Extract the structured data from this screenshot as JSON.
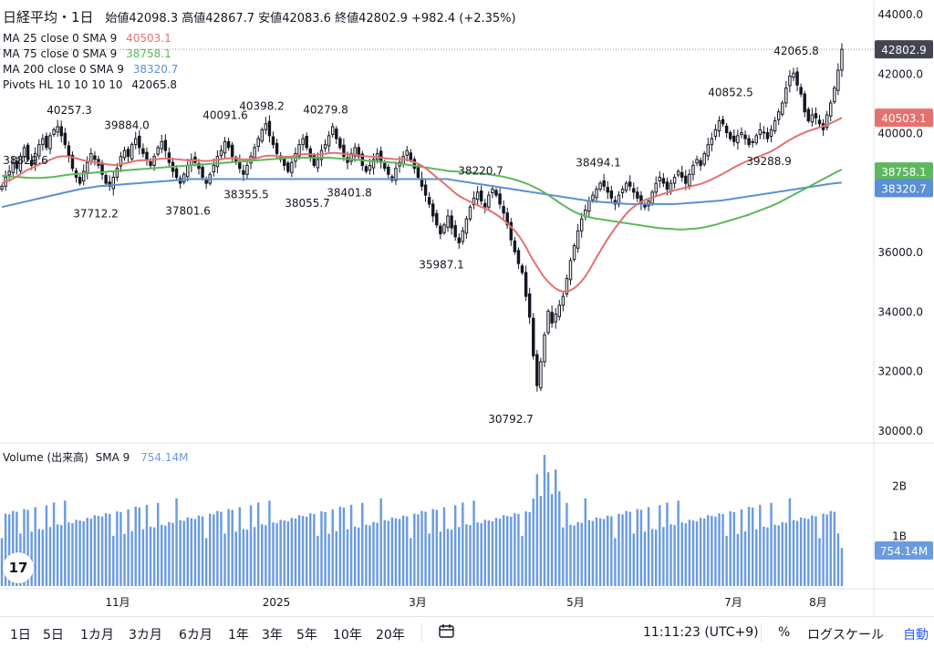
{
  "header": {
    "title": "日経平均・1日",
    "open_label": "始値",
    "open": "42098.3",
    "high_label": "高値",
    "high": "42867.7",
    "low_label": "安値",
    "low": "42083.6",
    "close_label": "終値",
    "close": "42802.9",
    "change": "+982.4 (+2.35%)"
  },
  "indicators": [
    {
      "label": "MA 25 close 0 SMA 9",
      "value": "40503.1",
      "color": "#e5716f"
    },
    {
      "label": "MA 75 close 0 SMA 9",
      "value": "38758.1",
      "color": "#5cb85c"
    },
    {
      "label": "MA 200 close 0 SMA 9",
      "value": "38320.7",
      "color": "#5b8fd6"
    },
    {
      "label": "Pivots HL 10 10 10 10",
      "value": "42065.8",
      "color": "#131722"
    }
  ],
  "volume_legend": {
    "label": "Volume (出来高)",
    "sma": "SMA 9",
    "value": "754.14M",
    "color": "#6a9be0"
  },
  "timeframes": [
    "1日",
    "5日",
    "1カ月",
    "3カ月",
    "6カ月",
    "1年",
    "3年",
    "5年",
    "10年",
    "20年"
  ],
  "footer": {
    "time": "11:11:23 (UTC+9)",
    "percent": "%",
    "log": "ログスケール",
    "auto": "自動"
  },
  "logo": "17",
  "chart_data": {
    "type": "candlestick",
    "price_axis": {
      "ticks": [
        30000,
        32000,
        34000,
        36000,
        38000,
        40000,
        42000,
        44000
      ],
      "labels": [
        "30000.0",
        "32000.0",
        "34000.0",
        "36000.0",
        "38000.0",
        "40000.0",
        "42000.0",
        "44000.0"
      ]
    },
    "volume_axis": {
      "ticks": [
        1,
        2
      ],
      "labels": [
        "1B",
        "2B"
      ]
    },
    "x_labels": [
      "11月",
      "2025",
      "3月",
      "5月",
      "7月",
      "8月"
    ],
    "last_price_labels": [
      {
        "value": "42802.9",
        "price": 42802.9,
        "color": "#434651"
      },
      {
        "value": "40503.1",
        "price": 40503.1,
        "color": "#e5716f"
      },
      {
        "value": "38758.1",
        "price": 38758.1,
        "color": "#5cb85c"
      },
      {
        "value": "38320.7",
        "price": 38320.7,
        "color": "#5b8fd6"
      },
      {
        "value": "754.14M",
        "volume": 0.75414,
        "color": "#6a9be0"
      }
    ],
    "pivot_labels": [
      {
        "text": "38829.6",
        "price": 38829.6
      },
      {
        "text": "40257.3",
        "price": 40257.3
      },
      {
        "text": "39884.0",
        "price": 39884.0
      },
      {
        "text": "37712.2",
        "price": 37712.2
      },
      {
        "text": "40091.6",
        "price": 40091.6
      },
      {
        "text": "37801.6",
        "price": 37801.6
      },
      {
        "text": "40398.2",
        "price": 40398.2
      },
      {
        "text": "38355.5",
        "price": 38355.5
      },
      {
        "text": "40279.8",
        "price": 40279.8
      },
      {
        "text": "38055.7",
        "price": 38055.7
      },
      {
        "text": "38401.8",
        "price": 38401.8
      },
      {
        "text": "38220.7",
        "price": 38220.7
      },
      {
        "text": "35987.1",
        "price": 35987.1
      },
      {
        "text": "30792.7",
        "price": 30792.7
      },
      {
        "text": "38494.1",
        "price": 38494.1
      },
      {
        "text": "40852.5",
        "price": 40852.5
      },
      {
        "text": "39288.9",
        "price": 39288.9
      },
      {
        "text": "42065.8",
        "price": 42065.8
      }
    ],
    "close_series": [
      38200,
      38500,
      38700,
      39000,
      38800,
      39200,
      39500,
      39100,
      38900,
      39300,
      39600,
      39800,
      39500,
      39900,
      40100,
      40200,
      39900,
      39600,
      39200,
      38800,
      38500,
      38300,
      38700,
      39000,
      39300,
      39100,
      38900,
      38600,
      38300,
      38200,
      38500,
      38800,
      39200,
      39400,
      39200,
      39600,
      39800,
      39500,
      39300,
      39100,
      38900,
      39200,
      39500,
      39700,
      39400,
      39000,
      38700,
      38500,
      38300,
      38600,
      38900,
      39100,
      39000,
      38800,
      38500,
      38300,
      38600,
      38900,
      39200,
      39400,
      39700,
      39500,
      39200,
      39000,
      38800,
      38600,
      38900,
      39200,
      39500,
      39800,
      40100,
      40300,
      39900,
      39600,
      39300,
      39100,
      38900,
      38700,
      39000,
      39300,
      39600,
      39800,
      39500,
      39200,
      38900,
      39100,
      39400,
      39600,
      39900,
      40200,
      39800,
      39500,
      39200,
      39000,
      39300,
      39500,
      39200,
      38900,
      38700,
      38900,
      39100,
      39300,
      39000,
      38800,
      38600,
      38400,
      38800,
      39000,
      39200,
      39400,
      39100,
      38800,
      38500,
      38200,
      37900,
      37600,
      37200,
      36900,
      36600,
      36900,
      37200,
      36800,
      36500,
      36300,
      36700,
      37100,
      37500,
      37800,
      38000,
      37700,
      37500,
      37900,
      38100,
      37900,
      37600,
      37300,
      36900,
      36400,
      36000,
      35600,
      35300,
      34500,
      33800,
      32500,
      31500,
      32300,
      33200,
      34000,
      33600,
      33900,
      34200,
      34500,
      35100,
      35700,
      36200,
      36700,
      37100,
      37400,
      37700,
      37900,
      38100,
      38300,
      38200,
      38000,
      37800,
      37600,
      37900,
      38100,
      38300,
      38200,
      38000,
      37800,
      37600,
      37500,
      37700,
      38000,
      38300,
      38500,
      38300,
      38100,
      38300,
      38500,
      38700,
      38500,
      38300,
      38600,
      38900,
      39100,
      38900,
      39300,
      39600,
      39800,
      40100,
      40400,
      40300,
      40000,
      39800,
      39700,
      39900,
      40000,
      39800,
      39600,
      39700,
      39900,
      40100,
      40000,
      39800,
      40100,
      40400,
      40700,
      41000,
      41500,
      41900,
      42000,
      41600,
      41300,
      40700,
      40400,
      40600,
      40500,
      40300,
      40100,
      40600,
      41000,
      41500,
      42100,
      42800
    ],
    "ma25_series": [
      38300,
      38350,
      38400,
      38450,
      38520,
      38600,
      38680,
      38750,
      38800,
      38860,
      38920,
      38980,
      39020,
      39080,
      39130,
      39180,
      39200,
      39210,
      39200,
      39180,
      39150,
      39110,
      39080,
      39050,
      39030,
      39010,
      38990,
      38970,
      38950,
      38930,
      38920,
      38910,
      38920,
      38950,
      38980,
      39010,
      39040,
      39060,
      39070,
      39070,
      39070,
      39080,
      39100,
      39120,
      39130,
      39130,
      39120,
      39110,
      39100,
      39090,
      39080,
      39070,
      39070,
      39070,
      39060,
      39050,
      39050,
      39060,
      39070,
      39090,
      39110,
      39130,
      39140,
      39140,
      39130,
      39110,
      39100,
      39100,
      39110,
      39130,
      39160,
      39200,
      39220,
      39230,
      39230,
      39220,
      39200,
      39190,
      39190,
      39200,
      39230,
      39260,
      39280,
      39280,
      39270,
      39260,
      39260,
      39270,
      39290,
      39310,
      39320,
      39320,
      39310,
      39290,
      39280,
      39270,
      39260,
      39240,
      39220,
      39210,
      39200,
      39190,
      39180,
      39170,
      39150,
      39130,
      39120,
      39110,
      39110,
      39110,
      39100,
      39070,
      39030,
      38980,
      38920,
      38850,
      38760,
      38660,
      38550,
      38450,
      38350,
      38250,
      38140,
      38030,
      37930,
      37850,
      37780,
      37720,
      37660,
      37600,
      37540,
      37490,
      37440,
      37380,
      37310,
      37230,
      37140,
      37040,
      36930,
      36810,
      36680,
      36520,
      36340,
      36130,
      35890,
      35680,
      35480,
      35290,
      35120,
      34980,
      34860,
      34760,
      34690,
      34660,
      34660,
      34700,
      34770,
      34870,
      35000,
      35160,
      35350,
      35560,
      35780,
      35990,
      36200,
      36400,
      36580,
      36760,
      36930,
      37090,
      37240,
      37370,
      37480,
      37580,
      37660,
      37720,
      37770,
      37810,
      37850,
      37890,
      37930,
      37970,
      38010,
      38050,
      38080,
      38110,
      38140,
      38170,
      38200,
      38230,
      38260,
      38300,
      38350,
      38400,
      38460,
      38520,
      38580,
      38650,
      38720,
      38790,
      38860,
      38920,
      38980,
      39030,
      39080,
      39130,
      39180,
      39230,
      39280,
      39330,
      39390,
      39460,
      39540,
      39620,
      39700,
      39770,
      39840,
      39900,
      39960,
      40010,
      40060,
      40100,
      40140,
      40180,
      40220,
      40270,
      40320,
      40380,
      40440,
      40503
    ],
    "ma75_series": [
      38550,
      38540,
      38530,
      38520,
      38510,
      38500,
      38490,
      38480,
      38480,
      38480,
      38480,
      38490,
      38500,
      38510,
      38530,
      38550,
      38570,
      38590,
      38600,
      38610,
      38620,
      38630,
      38640,
      38650,
      38660,
      38670,
      38680,
      38690,
      38700,
      38710,
      38720,
      38730,
      38740,
      38750,
      38760,
      38770,
      38780,
      38790,
      38800,
      38810,
      38820,
      38830,
      38840,
      38850,
      38860,
      38870,
      38880,
      38890,
      38900,
      38910,
      38920,
      38930,
      38940,
      38950,
      38960,
      38970,
      38980,
      38990,
      39000,
      39010,
      39020,
      39030,
      39040,
      39050,
      39060,
      39070,
      39080,
      39090,
      39100,
      39110,
      39120,
      39130,
      39140,
      39150,
      39160,
      39160,
      39160,
      39160,
      39160,
      39160,
      39160,
      39160,
      39160,
      39160,
      39150,
      39140,
      39130,
      39120,
      39110,
      39100,
      39090,
      39080,
      39070,
      39060,
      39050,
      39040,
      39030,
      39020,
      39010,
      39000,
      38990,
      38970,
      38950,
      38930,
      38910,
      38890,
      38870,
      38850,
      38830,
      38810,
      38790,
      38770,
      38750,
      38730,
      38710,
      38700,
      38690,
      38680,
      38670,
      38660,
      38650,
      38640,
      38630,
      38620,
      38600,
      38580,
      38560,
      38540,
      38510,
      38480,
      38450,
      38410,
      38370,
      38320,
      38270,
      38210,
      38150,
      38080,
      38000,
      37920,
      37830,
      37740,
      37650,
      37560,
      37480,
      37400,
      37330,
      37270,
      37220,
      37180,
      37150,
      37120,
      37100,
      37080,
      37060,
      37040,
      37020,
      37000,
      36980,
      36960,
      36940,
      36920,
      36900,
      36880,
      36860,
      36840,
      36820,
      36800,
      36790,
      36780,
      36770,
      36760,
      36750,
      36750,
      36750,
      36760,
      36770,
      36780,
      36800,
      36820,
      36850,
      36880,
      36910,
      36950,
      36990,
      37030,
      37070,
      37110,
      37150,
      37190,
      37230,
      37280,
      37330,
      37380,
      37430,
      37480,
      37530,
      37590,
      37650,
      37720,
      37790,
      37860,
      37930,
      38000,
      38070,
      38140,
      38210,
      38280,
      38350,
      38420,
      38490,
      38560,
      38630,
      38700,
      38758
    ],
    "ma200_series": [
      37500,
      37530,
      37560,
      37590,
      37620,
      37650,
      37680,
      37710,
      37740,
      37770,
      37800,
      37830,
      37860,
      37890,
      37920,
      37950,
      37980,
      38010,
      38040,
      38070,
      38100,
      38120,
      38140,
      38160,
      38180,
      38200,
      38210,
      38220,
      38230,
      38240,
      38250,
      38260,
      38270,
      38280,
      38290,
      38300,
      38310,
      38320,
      38330,
      38340,
      38350,
      38360,
      38370,
      38380,
      38390,
      38400,
      38410,
      38420,
      38430,
      38440,
      38440,
      38440,
      38440,
      38440,
      38440,
      38440,
      38440,
      38440,
      38440,
      38440,
      38440,
      38440,
      38440,
      38440,
      38440,
      38440,
      38440,
      38440,
      38440,
      38440,
      38440,
      38440,
      38440,
      38440,
      38440,
      38440,
      38440,
      38440,
      38440,
      38440,
      38440,
      38440,
      38440,
      38440,
      38440,
      38440,
      38440,
      38440,
      38440,
      38440,
      38440,
      38440,
      38440,
      38440,
      38440,
      38440,
      38440,
      38440,
      38440,
      38440,
      38440,
      38440,
      38440,
      38440,
      38440,
      38440,
      38440,
      38440,
      38440,
      38440,
      38440,
      38440,
      38440,
      38440,
      38440,
      38440,
      38420,
      38400,
      38380,
      38360,
      38340,
      38320,
      38300,
      38280,
      38260,
      38240,
      38220,
      38200,
      38180,
      38160,
      38140,
      38120,
      38100,
      38080,
      38060,
      38040,
      38020,
      38000,
      37980,
      37960,
      37940,
      37920,
      37900,
      37880,
      37860,
      37840,
      37820,
      37800,
      37780,
      37760,
      37740,
      37720,
      37700,
      37690,
      37680,
      37670,
      37660,
      37650,
      37640,
      37630,
      37620,
      37610,
      37600,
      37600,
      37600,
      37600,
      37600,
      37600,
      37600,
      37600,
      37600,
      37600,
      37600,
      37600,
      37600,
      37610,
      37620,
      37630,
      37640,
      37650,
      37660,
      37670,
      37680,
      37690,
      37700,
      37710,
      37720,
      37740,
      37760,
      37780,
      37800,
      37820,
      37840,
      37860,
      37880,
      37900,
      37920,
      37940,
      37960,
      37980,
      38000,
      38020,
      38040,
      38060,
      38080,
      38100,
      38120,
      38140,
      38160,
      38180,
      38200,
      38220,
      38240,
      38260,
      38280,
      38300,
      38310,
      38320
    ]
  }
}
